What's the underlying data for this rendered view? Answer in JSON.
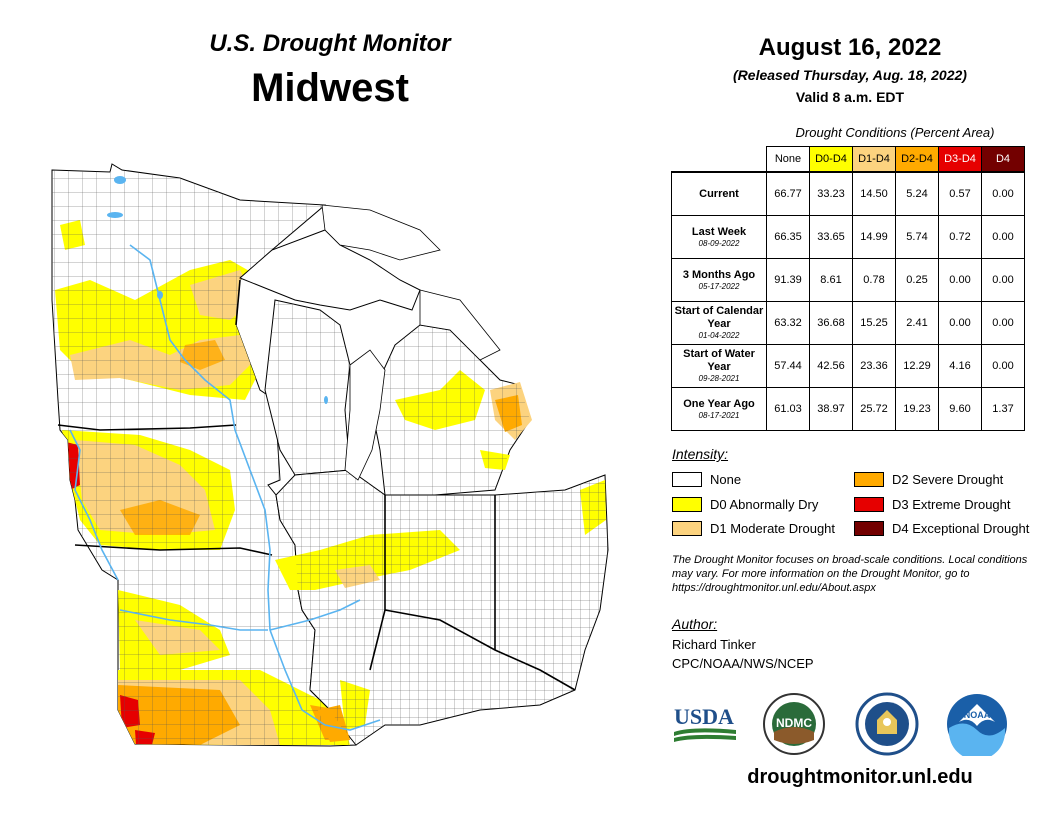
{
  "header": {
    "title": "U.S. Drought Monitor",
    "region": "Midwest",
    "date": "August 16, 2022",
    "released": "(Released Thursday, Aug. 18, 2022)",
    "valid": "Valid 8 a.m. EDT"
  },
  "table": {
    "caption": "Drought Conditions (Percent Area)",
    "columns": [
      "None",
      "D0-D4",
      "D1-D4",
      "D2-D4",
      "D3-D4",
      "D4"
    ],
    "column_colors": [
      "#ffffff",
      "#ffff00",
      "#fcd37f",
      "#ffaa00",
      "#e60000",
      "#730000"
    ],
    "rows": [
      {
        "label": "Current",
        "sub": "",
        "values": [
          "66.77",
          "33.23",
          "14.50",
          "5.24",
          "0.57",
          "0.00"
        ]
      },
      {
        "label": "Last Week",
        "sub": "08-09-2022",
        "values": [
          "66.35",
          "33.65",
          "14.99",
          "5.74",
          "0.72",
          "0.00"
        ]
      },
      {
        "label": "3 Months Ago",
        "sub": "05-17-2022",
        "values": [
          "91.39",
          "8.61",
          "0.78",
          "0.25",
          "0.00",
          "0.00"
        ]
      },
      {
        "label": "Start of Calendar Year",
        "sub": "01-04-2022",
        "values": [
          "63.32",
          "36.68",
          "15.25",
          "2.41",
          "0.00",
          "0.00"
        ]
      },
      {
        "label": "Start of Water Year",
        "sub": "09-28-2021",
        "values": [
          "57.44",
          "42.56",
          "23.36",
          "12.29",
          "4.16",
          "0.00"
        ]
      },
      {
        "label": "One Year Ago",
        "sub": "08-17-2021",
        "values": [
          "61.03",
          "38.97",
          "25.72",
          "19.23",
          "9.60",
          "1.37"
        ]
      }
    ]
  },
  "legend": {
    "title": "Intensity:",
    "items": [
      {
        "label": "None",
        "color": "#ffffff"
      },
      {
        "label": "D0 Abnormally Dry",
        "color": "#ffff00"
      },
      {
        "label": "D1 Moderate Drought",
        "color": "#fcd37f"
      },
      {
        "label": "D2 Severe Drought",
        "color": "#ffaa00"
      },
      {
        "label": "D3 Extreme Drought",
        "color": "#e60000"
      },
      {
        "label": "D4 Exceptional Drought",
        "color": "#730000"
      }
    ]
  },
  "note": "The Drought Monitor focuses on broad-scale conditions. Local conditions may vary. For more information on the Drought Monitor, go to https://droughtmonitor.unl.edu/About.aspx",
  "author": {
    "label": "Author:",
    "name": "Richard Tinker",
    "org": "CPC/NOAA/NWS/NCEP"
  },
  "logos": {
    "usda": "USDA",
    "ndmc": "NDMC",
    "noaa": "NOAA"
  },
  "footer_url": "droughtmonitor.unl.edu",
  "map_colors": {
    "water": "#5ab4f0",
    "state_border": "#000000",
    "county_border": "#444444"
  }
}
